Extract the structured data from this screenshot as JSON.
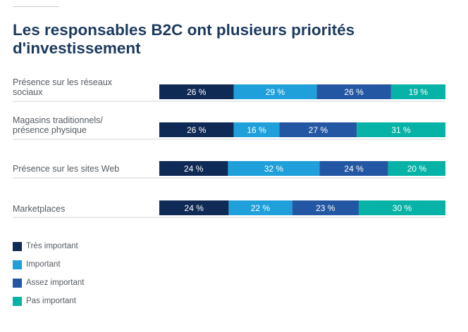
{
  "title": "Les responsables B2C ont plusieurs priorités d'investissement",
  "colors": {
    "tres_important": "#102a56",
    "important": "#1fa0da",
    "assez_important": "#2457a3",
    "pas_important": "#07b3a6",
    "divider": "#cfd4d9",
    "label": "#555b61",
    "title": "#1c3a5e"
  },
  "chart_data": {
    "type": "bar",
    "orientation": "horizontal",
    "stacked": true,
    "categories": [
      [
        "Présence sur les réseaux",
        "sociaux"
      ],
      [
        "Magasins traditionnels/",
        "présence physique"
      ],
      [
        "Présence sur les sites Web"
      ],
      [
        "Marketplaces"
      ]
    ],
    "series": [
      {
        "name": "Très important",
        "values": [
          26,
          26,
          24,
          24
        ]
      },
      {
        "name": "Important",
        "values": [
          29,
          16,
          32,
          22
        ]
      },
      {
        "name": "Assez important",
        "values": [
          26,
          27,
          24,
          23
        ]
      },
      {
        "name": "Pas important",
        "values": [
          19,
          31,
          20,
          30
        ]
      }
    ],
    "value_suffix": " %",
    "legend_position": "bottom-left"
  }
}
